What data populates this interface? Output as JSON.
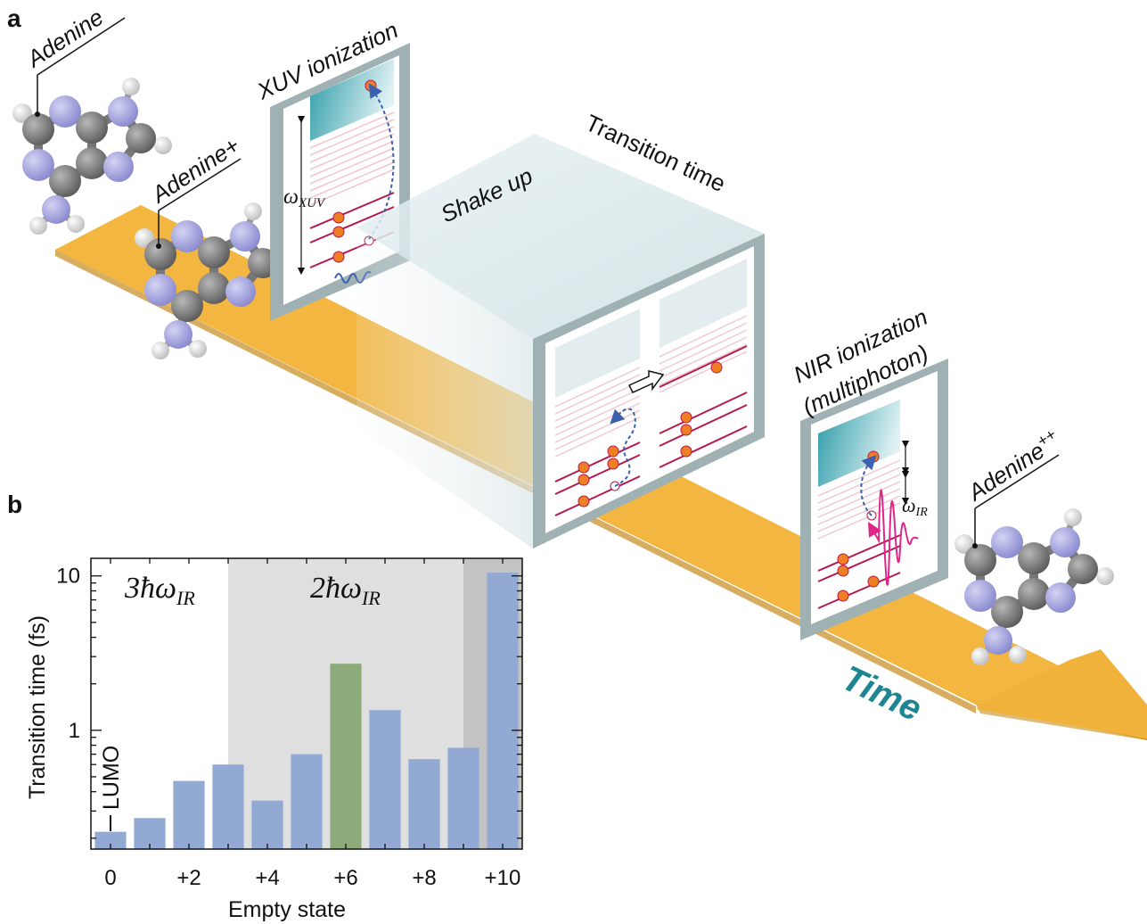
{
  "panels": {
    "a": "a",
    "b": "b"
  },
  "labels": {
    "adenine": "Adenine",
    "adenine_plus": "Adenine+",
    "adenine_plusplus_base": "Adenine",
    "adenine_plusplus_sup": "++",
    "xuv_ionization": "XUV ionization",
    "shake_up": "Shake up",
    "transition_time": "Transition time",
    "nir_ionization_line1": "NIR ionization",
    "nir_ionization_line2": "(multiphoton)",
    "time": "Time",
    "omega_xuv_main": "ω",
    "omega_xuv_sub": "XUV",
    "omega_ir_main": "ω",
    "omega_ir_sub": "IR"
  },
  "colors": {
    "beam": "#f2b53a",
    "box_frame": "#9fb1b3",
    "continuum": "#2a9aa7",
    "level_line": "#b5174e",
    "electron": "#f07f24",
    "xuv_pulse": "#3c5fb0",
    "ir_pulse": "#e0258a",
    "bar_blue": "#92a9d3",
    "bar_green": "#8caa7a",
    "time_text": "#1f8593"
  },
  "chart_data": {
    "type": "bar",
    "categories": [
      "0",
      "+1",
      "+2",
      "+3",
      "+4",
      "+5",
      "+6",
      "+7",
      "+8",
      "+9",
      "+10"
    ],
    "x_tick_labels": [
      "0",
      "+2",
      "+4",
      "+6",
      "+8",
      "+10"
    ],
    "values": [
      0.22,
      0.27,
      0.47,
      0.6,
      0.35,
      0.7,
      2.7,
      1.35,
      0.65,
      0.77,
      10.5
    ],
    "highlight_index": 6,
    "ylabel": "Transition time (fs)",
    "xlabel": "Empty state",
    "yscale": "log",
    "ylim": [
      0.17,
      13
    ],
    "y_tick_labels": [
      "1",
      "10"
    ],
    "region_labels": [
      {
        "main": "3ħω",
        "sub": "IR"
      },
      {
        "main": "2ħω",
        "sub": "IR"
      }
    ],
    "annotation": "LUMO"
  }
}
